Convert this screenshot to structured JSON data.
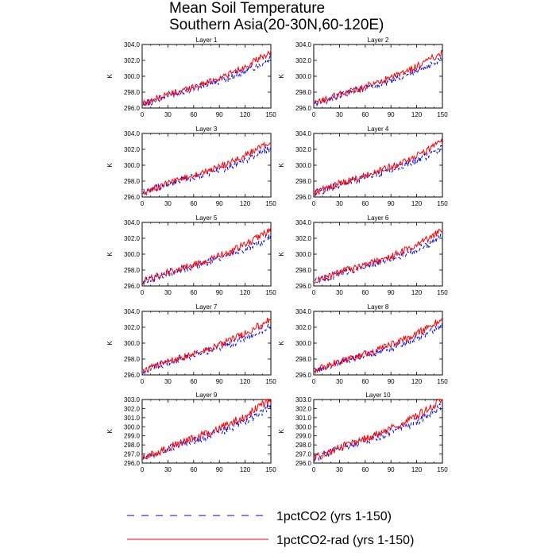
{
  "title": {
    "line1": "Mean Soil Temperature",
    "line2": "Southern Asia(20-30N,60-120E)"
  },
  "legend": [
    {
      "label": "1pctCO2 (yrs 1-150)",
      "color": "#0000ff",
      "style": "dashed"
    },
    {
      "label": "1pctCO2-rad (yrs 1-150)",
      "color": "#ff0000",
      "style": "solid"
    }
  ],
  "chart_data": {
    "type": "line",
    "layout": "5 rows x 2 columns of panels",
    "xlabel": "",
    "ylabel": "K",
    "xlim": [
      0,
      150
    ],
    "xticks": [
      0,
      30,
      60,
      90,
      120,
      150
    ],
    "xtick_labels": [
      "0",
      "30",
      "60",
      "90",
      "120",
      "150"
    ],
    "grid": false,
    "legend_placement": "bottom",
    "series_names": [
      "1pctCO2 (yrs 1-150)",
      "1pctCO2-rad (yrs 1-150)"
    ],
    "series_colors": [
      "#0000ff",
      "#ff0000"
    ],
    "series_styles": [
      "dashed",
      "solid"
    ],
    "x_anchors": [
      0,
      10,
      20,
      30,
      40,
      50,
      60,
      70,
      80,
      90,
      100,
      110,
      120,
      130,
      140,
      150
    ],
    "panels": [
      {
        "title": "Layer 1",
        "ylim": [
          296,
          304
        ],
        "yticks": [
          296,
          298,
          300,
          302,
          304
        ],
        "ytick_labels": [
          "296.0",
          "298.0",
          "300.0",
          "302.0",
          "304.0"
        ],
        "series": [
          {
            "name": "1pctCO2 (yrs 1-150)",
            "values": [
              296.5,
              296.8,
              297.2,
              297.6,
              297.9,
              298.2,
              298.5,
              298.8,
              299.1,
              299.4,
              299.8,
              300.2,
              300.6,
              301.1,
              301.6,
              302.3
            ]
          },
          {
            "name": "1pctCO2-rad (yrs 1-150)",
            "values": [
              296.5,
              296.9,
              297.3,
              297.7,
              298.0,
              298.3,
              298.7,
              299.0,
              299.4,
              299.8,
              300.2,
              300.7,
              301.2,
              301.8,
              302.4,
              303.0
            ]
          }
        ]
      },
      {
        "title": "Layer 2",
        "ylim": [
          296,
          304
        ],
        "yticks": [
          296,
          298,
          300,
          302,
          304
        ],
        "ytick_labels": [
          "296.0",
          "298.0",
          "300.0",
          "302.0",
          "304.0"
        ],
        "series": [
          {
            "name": "1pctCO2 (yrs 1-150)",
            "values": [
              296.5,
              296.8,
              297.2,
              297.6,
              297.9,
              298.2,
              298.5,
              298.8,
              299.1,
              299.4,
              299.8,
              300.2,
              300.6,
              301.1,
              301.6,
              302.3
            ]
          },
          {
            "name": "1pctCO2-rad (yrs 1-150)",
            "values": [
              296.5,
              296.9,
              297.3,
              297.7,
              298.0,
              298.3,
              298.7,
              299.0,
              299.4,
              299.8,
              300.2,
              300.7,
              301.2,
              301.8,
              302.4,
              303.0
            ]
          }
        ]
      },
      {
        "title": "Layer 3",
        "ylim": [
          296,
          304
        ],
        "yticks": [
          296,
          298,
          300,
          302,
          304
        ],
        "ytick_labels": [
          "296.0",
          "298.0",
          "300.0",
          "302.0",
          "304.0"
        ],
        "series": [
          {
            "name": "1pctCO2 (yrs 1-150)",
            "values": [
              296.5,
              296.8,
              297.2,
              297.6,
              297.9,
              298.2,
              298.5,
              298.8,
              299.1,
              299.4,
              299.8,
              300.2,
              300.6,
              301.1,
              301.6,
              302.3
            ]
          },
          {
            "name": "1pctCO2-rad (yrs 1-150)",
            "values": [
              296.5,
              296.9,
              297.3,
              297.7,
              298.0,
              298.3,
              298.7,
              299.0,
              299.4,
              299.8,
              300.2,
              300.7,
              301.2,
              301.8,
              302.4,
              303.0
            ]
          }
        ]
      },
      {
        "title": "Layer 4",
        "ylim": [
          296,
          304
        ],
        "yticks": [
          296,
          298,
          300,
          302,
          304
        ],
        "ytick_labels": [
          "296.0",
          "298.0",
          "300.0",
          "302.0",
          "304.0"
        ],
        "series": [
          {
            "name": "1pctCO2 (yrs 1-150)",
            "values": [
              296.5,
              296.8,
              297.2,
              297.6,
              297.9,
              298.2,
              298.5,
              298.8,
              299.1,
              299.4,
              299.8,
              300.2,
              300.6,
              301.1,
              301.6,
              302.3
            ]
          },
          {
            "name": "1pctCO2-rad (yrs 1-150)",
            "values": [
              296.5,
              296.9,
              297.3,
              297.7,
              298.0,
              298.3,
              298.7,
              299.0,
              299.4,
              299.8,
              300.2,
              300.7,
              301.2,
              301.8,
              302.4,
              303.0
            ]
          }
        ]
      },
      {
        "title": "Layer 5",
        "ylim": [
          296,
          304
        ],
        "yticks": [
          296,
          298,
          300,
          302,
          304
        ],
        "ytick_labels": [
          "296.0",
          "298.0",
          "300.0",
          "302.0",
          "304.0"
        ],
        "series": [
          {
            "name": "1pctCO2 (yrs 1-150)",
            "values": [
              296.5,
              296.8,
              297.2,
              297.6,
              297.9,
              298.2,
              298.5,
              298.8,
              299.1,
              299.4,
              299.8,
              300.2,
              300.6,
              301.1,
              301.6,
              302.3
            ]
          },
          {
            "name": "1pctCO2-rad (yrs 1-150)",
            "values": [
              296.5,
              296.9,
              297.3,
              297.7,
              298.0,
              298.3,
              298.7,
              299.0,
              299.4,
              299.8,
              300.2,
              300.7,
              301.2,
              301.8,
              302.4,
              303.0
            ]
          }
        ]
      },
      {
        "title": "Layer 6",
        "ylim": [
          296,
          304
        ],
        "yticks": [
          296,
          298,
          300,
          302,
          304
        ],
        "ytick_labels": [
          "296.0",
          "298.0",
          "300.0",
          "302.0",
          "304.0"
        ],
        "series": [
          {
            "name": "1pctCO2 (yrs 1-150)",
            "values": [
              296.5,
              296.8,
              297.2,
              297.6,
              297.9,
              298.2,
              298.5,
              298.8,
              299.1,
              299.4,
              299.8,
              300.2,
              300.6,
              301.1,
              301.6,
              302.3
            ]
          },
          {
            "name": "1pctCO2-rad (yrs 1-150)",
            "values": [
              296.5,
              296.9,
              297.3,
              297.7,
              298.0,
              298.3,
              298.7,
              299.0,
              299.4,
              299.8,
              300.2,
              300.7,
              301.2,
              301.8,
              302.4,
              303.0
            ]
          }
        ]
      },
      {
        "title": "Layer 7",
        "ylim": [
          296,
          304
        ],
        "yticks": [
          296,
          298,
          300,
          302,
          304
        ],
        "ytick_labels": [
          "296.0",
          "298.0",
          "300.0",
          "302.0",
          "304.0"
        ],
        "series": [
          {
            "name": "1pctCO2 (yrs 1-150)",
            "values": [
              296.5,
              296.8,
              297.2,
              297.6,
              297.9,
              298.2,
              298.5,
              298.8,
              299.1,
              299.4,
              299.8,
              300.2,
              300.6,
              301.1,
              301.6,
              302.3
            ]
          },
          {
            "name": "1pctCO2-rad (yrs 1-150)",
            "values": [
              296.5,
              296.9,
              297.3,
              297.7,
              298.0,
              298.3,
              298.7,
              299.0,
              299.4,
              299.8,
              300.2,
              300.7,
              301.2,
              301.8,
              302.4,
              303.0
            ]
          }
        ]
      },
      {
        "title": "Layer 8",
        "ylim": [
          296,
          304
        ],
        "yticks": [
          296,
          298,
          300,
          302,
          304
        ],
        "ytick_labels": [
          "296.0",
          "298.0",
          "300.0",
          "302.0",
          "304.0"
        ],
        "series": [
          {
            "name": "1pctCO2 (yrs 1-150)",
            "values": [
              296.5,
              296.8,
              297.2,
              297.6,
              297.9,
              298.2,
              298.5,
              298.8,
              299.1,
              299.4,
              299.8,
              300.2,
              300.6,
              301.1,
              301.6,
              302.3
            ]
          },
          {
            "name": "1pctCO2-rad (yrs 1-150)",
            "values": [
              296.5,
              296.9,
              297.3,
              297.7,
              298.0,
              298.3,
              298.7,
              299.0,
              299.4,
              299.8,
              300.2,
              300.7,
              301.2,
              301.8,
              302.4,
              303.0
            ]
          }
        ]
      },
      {
        "title": "Layer 9",
        "ylim": [
          296,
          303
        ],
        "yticks": [
          296,
          297,
          298,
          299,
          300,
          301,
          302,
          303
        ],
        "ytick_labels": [
          "296.0",
          "297.0",
          "298.0",
          "299.0",
          "300.0",
          "301.0",
          "302.0",
          "303.0"
        ],
        "series": [
          {
            "name": "1pctCO2 (yrs 1-150)",
            "values": [
              296.5,
              296.8,
              297.2,
              297.6,
              297.9,
              298.2,
              298.5,
              298.8,
              299.1,
              299.4,
              299.8,
              300.2,
              300.6,
              301.1,
              301.6,
              302.5
            ]
          },
          {
            "name": "1pctCO2-rad (yrs 1-150)",
            "values": [
              296.5,
              296.9,
              297.3,
              297.7,
              298.0,
              298.3,
              298.7,
              299.0,
              299.4,
              299.8,
              300.2,
              300.7,
              301.2,
              301.8,
              302.4,
              302.9
            ]
          }
        ]
      },
      {
        "title": "Layer 10",
        "ylim": [
          296,
          303
        ],
        "yticks": [
          296,
          297,
          298,
          299,
          300,
          301,
          302,
          303
        ],
        "ytick_labels": [
          "296.0",
          "297.0",
          "298.0",
          "299.0",
          "300.0",
          "301.0",
          "302.0",
          "303.0"
        ],
        "series": [
          {
            "name": "1pctCO2 (yrs 1-150)",
            "values": [
              296.5,
              296.8,
              297.2,
              297.6,
              297.9,
              298.2,
              298.5,
              298.8,
              299.1,
              299.4,
              299.8,
              300.2,
              300.6,
              301.1,
              301.6,
              302.5
            ]
          },
          {
            "name": "1pctCO2-rad (yrs 1-150)",
            "values": [
              296.5,
              296.9,
              297.3,
              297.7,
              298.0,
              298.3,
              298.7,
              299.0,
              299.4,
              299.8,
              300.2,
              300.7,
              301.2,
              301.8,
              302.4,
              302.9
            ]
          }
        ]
      }
    ]
  }
}
